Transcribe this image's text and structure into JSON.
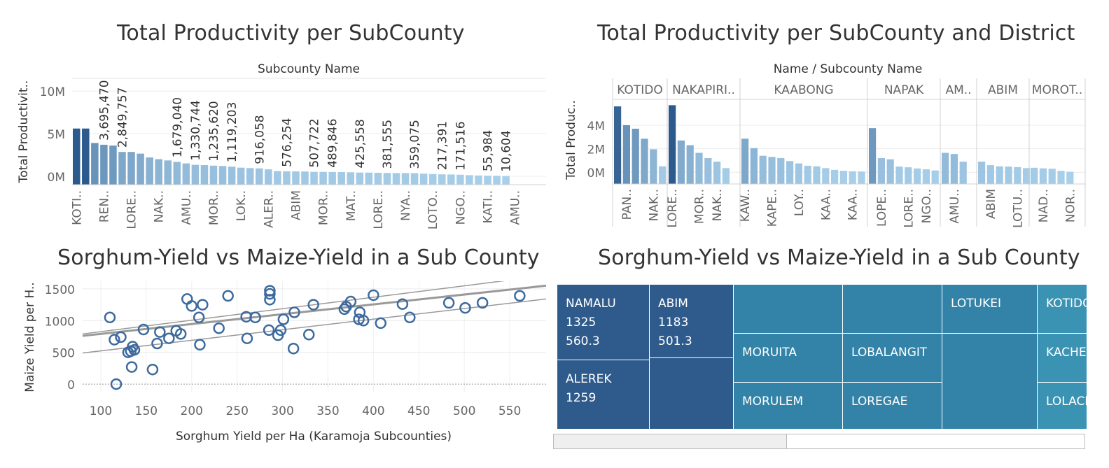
{
  "titles": {
    "bar1": "Total Productivity per SubCounty",
    "bar2": "Total Productivity per SubCounty and District",
    "scatter": "Sorghum-Yield vs Maize-Yield in a Sub County",
    "treemap": "Sorghum-Yield vs Maize-Yield in a Sub County"
  },
  "colors": {
    "dark": "#2c5a8c",
    "light": "#a9d0ea",
    "scatter_point": "#3d6a9e",
    "trend": "#999999",
    "treemap_dark": "#2e5b8c",
    "treemap_mid": "#3383a8",
    "treemap_light": "#3b93b3"
  },
  "chart_data": [
    {
      "type": "bar",
      "name": "bar1",
      "header": "Subcounty Name",
      "ylabel": "Total Productivit..",
      "yticks": [
        "10M",
        "5M",
        "0M"
      ],
      "ytick_values": [
        10000000,
        5000000,
        0
      ],
      "ylim": [
        -1000000,
        11500000
      ],
      "values": [
        5600000,
        5600000,
        3900000,
        3695470,
        3600000,
        2849757,
        2850000,
        2650000,
        2200000,
        2000000,
        1850000,
        1679040,
        1500000,
        1330744,
        1300000,
        1235620,
        1200000,
        1119203,
        1000000,
        950000,
        916058,
        800000,
        600000,
        576254,
        560000,
        550000,
        507722,
        500000,
        489846,
        480000,
        460000,
        425558,
        420000,
        400000,
        381555,
        370000,
        365000,
        359075,
        300000,
        250000,
        217391,
        200000,
        171516,
        120000,
        80000,
        55984,
        40000,
        10604
      ],
      "data_labels": [
        {
          "index": 3,
          "text": "3,695,470"
        },
        {
          "index": 5,
          "text": "2,849,757"
        },
        {
          "index": 11,
          "text": "1,679,040"
        },
        {
          "index": 13,
          "text": "1,330,744"
        },
        {
          "index": 15,
          "text": "1,235,620"
        },
        {
          "index": 17,
          "text": "1,119,203"
        },
        {
          "index": 20,
          "text": "916,058"
        },
        {
          "index": 23,
          "text": "576,254"
        },
        {
          "index": 26,
          "text": "507,722"
        },
        {
          "index": 28,
          "text": "489,846"
        },
        {
          "index": 31,
          "text": "425,558"
        },
        {
          "index": 34,
          "text": "381,555"
        },
        {
          "index": 37,
          "text": "359,075"
        },
        {
          "index": 40,
          "text": "217,391"
        },
        {
          "index": 42,
          "text": "171,516"
        },
        {
          "index": 45,
          "text": "55,984"
        },
        {
          "index": 47,
          "text": "10,604"
        }
      ],
      "category_labels": [
        {
          "index": 0,
          "text": "KOTI.."
        },
        {
          "index": 3,
          "text": "REN.."
        },
        {
          "index": 6,
          "text": "LORE.."
        },
        {
          "index": 9,
          "text": "NAK.."
        },
        {
          "index": 12,
          "text": "AMU.."
        },
        {
          "index": 15,
          "text": "MOR.."
        },
        {
          "index": 18,
          "text": "LOK.."
        },
        {
          "index": 21,
          "text": "ALER.."
        },
        {
          "index": 24,
          "text": "ABIM"
        },
        {
          "index": 27,
          "text": "MOR.."
        },
        {
          "index": 30,
          "text": "MAT.."
        },
        {
          "index": 33,
          "text": "LORE.."
        },
        {
          "index": 36,
          "text": "NYA.."
        },
        {
          "index": 39,
          "text": "LOTO.."
        },
        {
          "index": 42,
          "text": "NGO.."
        },
        {
          "index": 45,
          "text": "KATI.."
        },
        {
          "index": 48,
          "text": "AMU.."
        }
      ]
    },
    {
      "type": "bar",
      "name": "bar2",
      "header": "Name  /  Subcounty Name",
      "ylabel": "Total Produc..",
      "yticks": [
        "4M",
        "2M",
        "0M"
      ],
      "ytick_values": [
        4000000,
        2000000,
        0
      ],
      "ylim": [
        -1000000,
        6200000
      ],
      "groups": [
        {
          "name": "KOTIDO",
          "values": [
            5600000,
            4000000,
            3700000,
            2850000,
            1950000,
            500000
          ],
          "labels": [
            {
              "index": 1,
              "text": "PAN.."
            },
            {
              "index": 4,
              "text": "NAK.."
            }
          ]
        },
        {
          "name": "NAKAPIRI..",
          "values": [
            5700000,
            2700000,
            2300000,
            1650000,
            1200000,
            900000,
            350000
          ],
          "labels": [
            {
              "index": 0,
              "text": "LORE.."
            },
            {
              "index": 3,
              "text": "MOR.."
            },
            {
              "index": 5,
              "text": "NAK.."
            }
          ]
        },
        {
          "name": "KAABONG",
          "values": [
            2850000,
            2050000,
            1400000,
            1300000,
            1200000,
            950000,
            750000,
            550000,
            500000,
            350000,
            200000,
            120000,
            80000,
            60000
          ],
          "labels": [
            {
              "index": 0,
              "text": "KAW.."
            },
            {
              "index": 3,
              "text": "KAPE.."
            },
            {
              "index": 6,
              "text": "LOY.."
            },
            {
              "index": 9,
              "text": "KAA.."
            },
            {
              "index": 12,
              "text": "KAA.."
            }
          ]
        },
        {
          "name": "NAPAK",
          "values": [
            3750000,
            1200000,
            1100000,
            480000,
            420000,
            320000,
            250000,
            150000
          ],
          "labels": [
            {
              "index": 1,
              "text": "LOPE.."
            },
            {
              "index": 4,
              "text": "LORE.."
            },
            {
              "index": 6,
              "text": "NGO.."
            }
          ]
        },
        {
          "name": "AM..",
          "values": [
            1650000,
            1550000,
            900000
          ],
          "labels": [
            {
              "index": 1,
              "text": "AMU.."
            }
          ]
        },
        {
          "name": "ABIM",
          "values": [
            900000,
            600000,
            500000,
            480000,
            430000,
            350000
          ],
          "labels": [
            {
              "index": 1,
              "text": "ABIM"
            },
            {
              "index": 4,
              "text": "LOTU.."
            }
          ]
        },
        {
          "name": "MOROT..",
          "values": [
            380000,
            330000,
            300000,
            120000,
            40000
          ],
          "labels": [
            {
              "index": 1,
              "text": "NAD.."
            },
            {
              "index": 4,
              "text": "NOR.."
            }
          ]
        }
      ]
    },
    {
      "type": "scatter",
      "name": "scatter",
      "xlabel": "Sorghum Yield per Ha (Karamoja Subcounties)",
      "ylabel": "Maize Yield per H..",
      "xticks": [
        100,
        150,
        200,
        250,
        300,
        350,
        400,
        450,
        500,
        550
      ],
      "yticks": [
        1500,
        1000,
        500,
        0
      ],
      "xlim": [
        80,
        590
      ],
      "ylim": [
        -120,
        1620
      ],
      "points": [
        [
          110,
          1050
        ],
        [
          115,
          700
        ],
        [
          117,
          0
        ],
        [
          122,
          740
        ],
        [
          130,
          500
        ],
        [
          133,
          520
        ],
        [
          134,
          270
        ],
        [
          135,
          590
        ],
        [
          137,
          540
        ],
        [
          147,
          860
        ],
        [
          157,
          230
        ],
        [
          162,
          640
        ],
        [
          165,
          820
        ],
        [
          175,
          720
        ],
        [
          183,
          840
        ],
        [
          188,
          790
        ],
        [
          195,
          1340
        ],
        [
          200,
          1230
        ],
        [
          208,
          1050
        ],
        [
          209,
          620
        ],
        [
          212,
          1250
        ],
        [
          230,
          880
        ],
        [
          240,
          1390
        ],
        [
          260,
          1060
        ],
        [
          261,
          720
        ],
        [
          270,
          1050
        ],
        [
          285,
          850
        ],
        [
          286,
          1330
        ],
        [
          286,
          1420
        ],
        [
          286,
          1470
        ],
        [
          295,
          770
        ],
        [
          298,
          850
        ],
        [
          301,
          1020
        ],
        [
          312,
          560
        ],
        [
          313,
          1130
        ],
        [
          329,
          780
        ],
        [
          334,
          1250
        ],
        [
          368,
          1180
        ],
        [
          370,
          1220
        ],
        [
          375,
          1300
        ],
        [
          384,
          1020
        ],
        [
          385,
          1130
        ],
        [
          389,
          1000
        ],
        [
          400,
          1400
        ],
        [
          408,
          960
        ],
        [
          432,
          1260
        ],
        [
          440,
          1050
        ],
        [
          483,
          1280
        ],
        [
          501,
          1200
        ],
        [
          520,
          1280
        ],
        [
          561,
          1390
        ]
      ],
      "trend": {
        "x": [
          80,
          590
        ],
        "y": [
          760,
          1550
        ]
      },
      "bands": [
        {
          "x": [
            80,
            590
          ],
          "y": [
            490,
            1340
          ]
        },
        {
          "x": [
            80,
            590
          ],
          "y": [
            790,
            1710
          ]
        }
      ]
    },
    {
      "type": "heatmap",
      "name": "treemap",
      "cells": [
        {
          "label": "NAMALU\n1325\n560.3",
          "color": "treemap_dark"
        },
        {
          "label": "ALEREK\n1259",
          "color": "treemap_dark"
        },
        {
          "label": "ABIM\n1183\n501.3",
          "color": "treemap_dark"
        },
        {
          "label": "",
          "color": "treemap_dark"
        },
        {
          "label": "",
          "color": "treemap_mid"
        },
        {
          "label": "MORUITA",
          "color": "treemap_mid"
        },
        {
          "label": "MORULEM",
          "color": "treemap_mid"
        },
        {
          "label": "",
          "color": "treemap_mid"
        },
        {
          "label": "LOBALANGIT",
          "color": "treemap_mid"
        },
        {
          "label": "LOREGAE",
          "color": "treemap_mid"
        },
        {
          "label": "LOTUKEI",
          "color": "treemap_mid"
        },
        {
          "label": "",
          "color": "treemap_mid"
        },
        {
          "label": "KOTIDO",
          "color": "treemap_light"
        },
        {
          "label": "KACHE",
          "color": "treemap_light"
        },
        {
          "label": "LOLACH",
          "color": "treemap_light"
        }
      ]
    }
  ]
}
